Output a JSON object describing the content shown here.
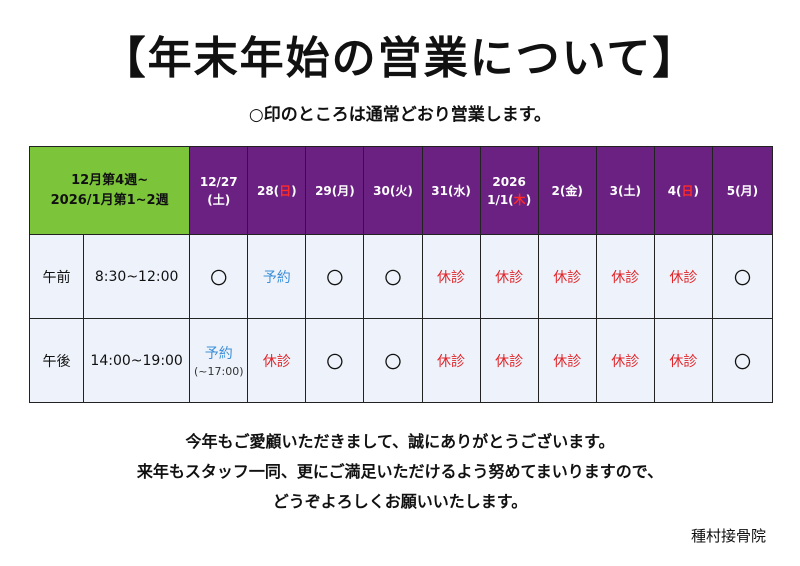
{
  "header": {
    "title": "【年末年始の営業について】",
    "subtitle": "○印のところは通常どおり営業します。"
  },
  "table": {
    "corner_label": [
      "12月第4週~",
      "2026/1月第1~2週"
    ],
    "columns": [
      {
        "parts": [
          {
            "t": "12/27",
            "h": false
          },
          {
            "br": true
          },
          {
            "t": "(土)",
            "h": false
          }
        ]
      },
      {
        "parts": [
          {
            "t": "28(",
            "h": false
          },
          {
            "t": "日",
            "h": true
          },
          {
            "t": ")",
            "h": false
          }
        ]
      },
      {
        "parts": [
          {
            "t": "29(月)",
            "h": false
          }
        ]
      },
      {
        "parts": [
          {
            "t": "30(火)",
            "h": false
          }
        ]
      },
      {
        "parts": [
          {
            "t": "31(水)",
            "h": false
          }
        ]
      },
      {
        "parts": [
          {
            "t": "2026",
            "h": false
          },
          {
            "br": true
          },
          {
            "t": "1/1(",
            "h": false
          },
          {
            "t": "木",
            "h": true
          },
          {
            "t": ")",
            "h": false
          }
        ]
      },
      {
        "parts": [
          {
            "t": "2(金)",
            "h": false
          }
        ]
      },
      {
        "parts": [
          {
            "t": "3(土)",
            "h": false
          }
        ]
      },
      {
        "parts": [
          {
            "t": "4(",
            "h": false
          },
          {
            "t": "日",
            "h": true
          },
          {
            "t": ")",
            "h": false
          }
        ]
      },
      {
        "parts": [
          {
            "t": "5(月)",
            "h": false
          }
        ]
      }
    ],
    "rows": [
      {
        "period": "午前",
        "hours": "8:30~12:00",
        "cells": [
          {
            "text": "〇",
            "kind": "open"
          },
          {
            "text": "予約",
            "kind": "reserve"
          },
          {
            "text": "〇",
            "kind": "open"
          },
          {
            "text": "〇",
            "kind": "open"
          },
          {
            "text": "休診",
            "kind": "closed"
          },
          {
            "text": "休診",
            "kind": "closed"
          },
          {
            "text": "休診",
            "kind": "closed"
          },
          {
            "text": "休診",
            "kind": "closed"
          },
          {
            "text": "休診",
            "kind": "closed"
          },
          {
            "text": "〇",
            "kind": "open"
          }
        ]
      },
      {
        "period": "午後",
        "hours": "14:00~19:00",
        "cells": [
          {
            "text": "予約",
            "kind": "reserve",
            "note": "(~17:00)"
          },
          {
            "text": "休診",
            "kind": "closed"
          },
          {
            "text": "〇",
            "kind": "open"
          },
          {
            "text": "〇",
            "kind": "open"
          },
          {
            "text": "休診",
            "kind": "closed"
          },
          {
            "text": "休診",
            "kind": "closed"
          },
          {
            "text": "休診",
            "kind": "closed"
          },
          {
            "text": "休診",
            "kind": "closed"
          },
          {
            "text": "休診",
            "kind": "closed"
          },
          {
            "text": "〇",
            "kind": "open"
          }
        ]
      }
    ]
  },
  "message": [
    "今年もご愛顧いただきまして、誠にありがとうございます。",
    "来年もスタッフ一同、更にご満足いただけるよう努めてまいりますので、",
    "どうぞよろしくお願いいたします。"
  ],
  "footer": {
    "clinic_name": "種村接骨院"
  },
  "colors": {
    "header_purple": "#6a2182",
    "corner_green": "#7cc43a",
    "cell_background": "#eef3fb",
    "closed_red": "#e0262a",
    "holiday_red": "#ff2a2a",
    "reserve_blue": "#3e8fd6"
  }
}
